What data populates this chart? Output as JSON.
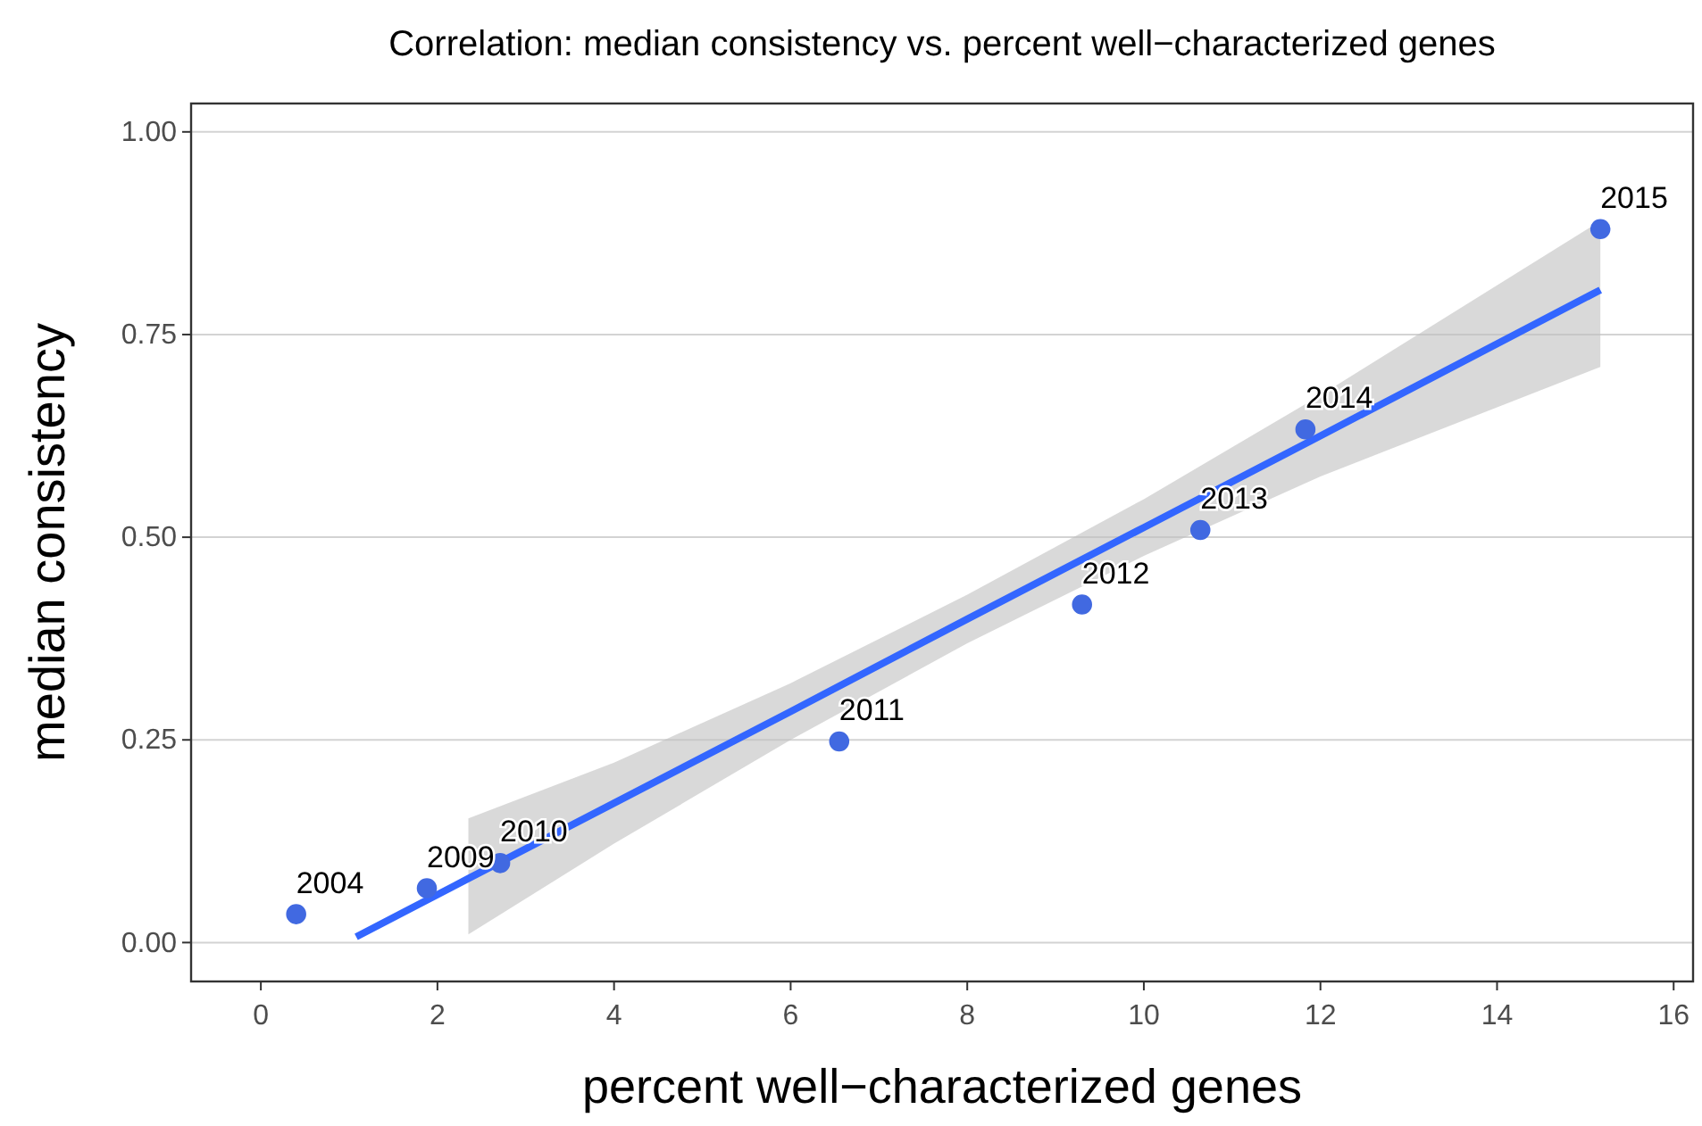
{
  "chart_data": {
    "type": "scatter",
    "title": "Correlation: median consistency vs. percent well−characterized genes",
    "xlabel": "percent well−characterized genes",
    "ylabel": "median consistency",
    "series": [
      {
        "marker": "circle",
        "color": "#4169e1",
        "x": [
          0.4,
          1.88,
          2.71,
          6.55,
          9.3,
          10.64,
          11.83,
          15.17
        ],
        "values": [
          0.035,
          0.067,
          0.098,
          0.248,
          0.417,
          0.509,
          0.633,
          0.88
        ]
      },
      {
        "type": "line",
        "color": "#3366ff",
        "x": [
          1.08,
          2.35,
          4,
          6,
          8,
          10,
          12,
          15.17
        ],
        "values": [
          0.007,
          0.079,
          0.172,
          0.285,
          0.399,
          0.512,
          0.625,
          0.805
        ],
        "lower": [
          null,
          0.01,
          0.122,
          0.25,
          0.369,
          0.477,
          0.575,
          0.71
        ],
        "upper": [
          null,
          0.153,
          0.222,
          0.32,
          0.429,
          0.547,
          0.675,
          0.89
        ]
      }
    ],
    "annotations": [
      {
        "text": "2004",
        "x": 0.4,
        "y": 0.035
      },
      {
        "text": "2009",
        "x": 1.88,
        "y": 0.067
      },
      {
        "text": "2010",
        "x": 2.71,
        "y": 0.098
      },
      {
        "text": "2011",
        "x": 6.55,
        "y": 0.248
      },
      {
        "text": "2012",
        "x": 9.3,
        "y": 0.417
      },
      {
        "text": "2013",
        "x": 10.64,
        "y": 0.509
      },
      {
        "text": "2014",
        "x": 11.83,
        "y": 0.633
      },
      {
        "text": "2015",
        "x": 15.17,
        "y": 0.88
      }
    ],
    "xlim": [
      -0.79,
      16.22
    ],
    "ylim": [
      -0.048,
      1.035
    ],
    "xticks": [
      0,
      2,
      4,
      6,
      8,
      10,
      12,
      14,
      16
    ],
    "yticks": [
      {
        "value": 0,
        "label": "0.00"
      },
      {
        "value": 0.25,
        "label": "0.25"
      },
      {
        "value": 0.5,
        "label": "0.50"
      },
      {
        "value": 0.75,
        "label": "0.75"
      },
      {
        "value": 1,
        "label": "1.00"
      }
    ],
    "grid": "y"
  }
}
